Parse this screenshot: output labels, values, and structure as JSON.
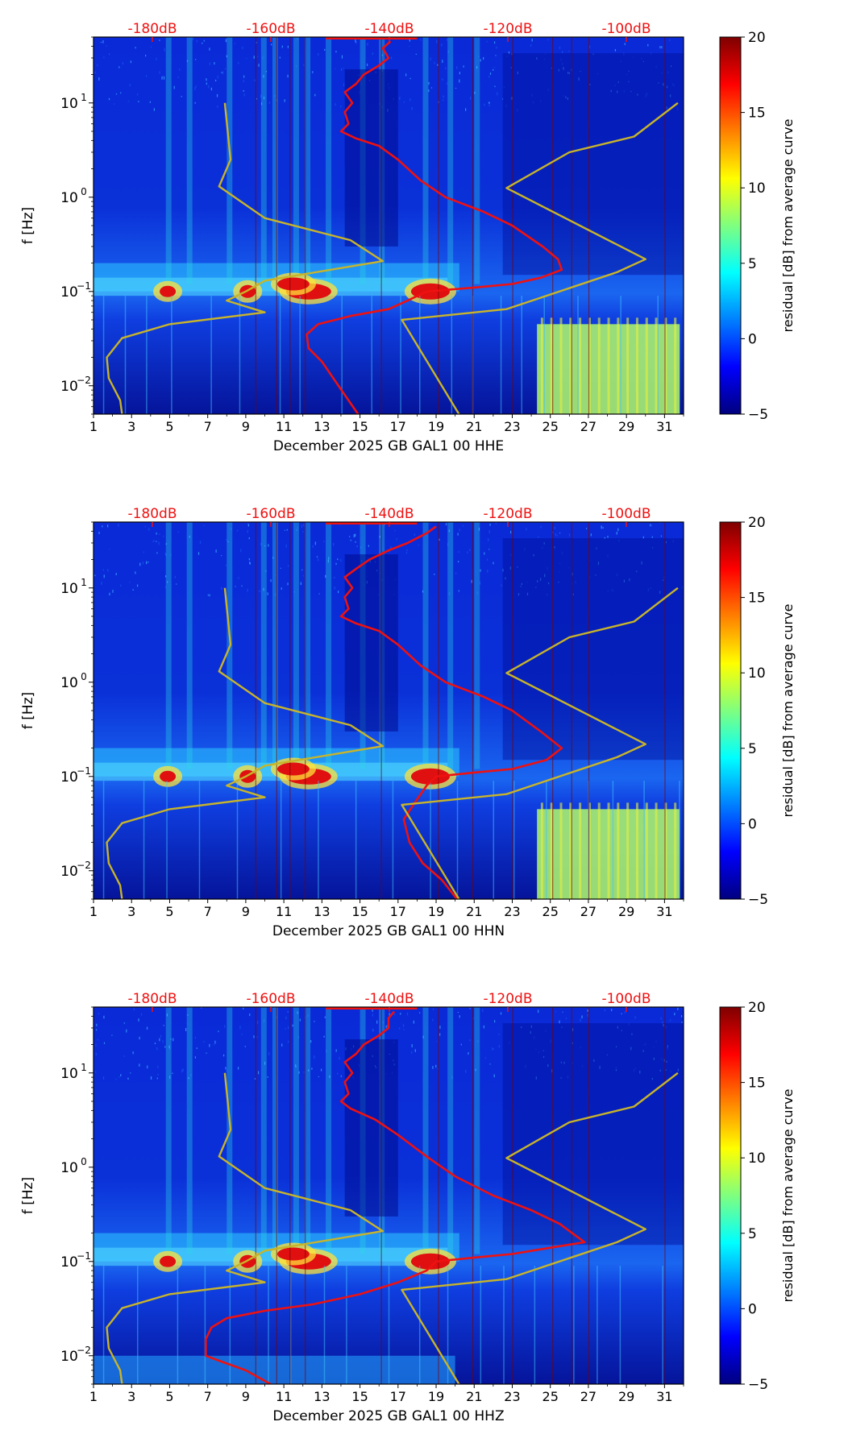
{
  "chart_data": [
    {
      "type": "heatmap",
      "xlabel": "December 2025 GB GAL1 00 HHE",
      "ylabel": "f [Hz]",
      "x_ticks": [
        "1",
        "3",
        "5",
        "7",
        "9",
        "11",
        "13",
        "15",
        "17",
        "19",
        "21",
        "23",
        "25",
        "27",
        "29",
        "31"
      ],
      "xlim": [
        1,
        32
      ],
      "y_scale": "log",
      "ylim": [
        0.005,
        50
      ],
      "y_ticks": [
        {
          "value": 0.01,
          "label": "10",
          "exp": "−2"
        },
        {
          "value": 0.1,
          "label": "10",
          "exp": "−1"
        },
        {
          "value": 1,
          "label": "10",
          "exp": "0"
        },
        {
          "value": 10,
          "label": "10",
          "exp": "1"
        }
      ],
      "db_scale_labels": [
        "-180dB",
        "-160dB",
        "-140dB",
        "-120dB",
        "-100dB"
      ],
      "colorbar": {
        "label": "residual [dB] from average curve",
        "ticks": [
          "20",
          "15",
          "10",
          "5",
          "0",
          "−5"
        ],
        "range": [
          -5,
          20
        ]
      },
      "series": [
        {
          "name": "median PSD (red)",
          "color": "#ee1111",
          "points": [
            [
              14.9,
              0.005
            ],
            [
              14.2,
              0.008
            ],
            [
              13.6,
              0.012
            ],
            [
              13.0,
              0.018
            ],
            [
              12.3,
              0.025
            ],
            [
              12.2,
              0.035
            ],
            [
              12.8,
              0.045
            ],
            [
              14.5,
              0.055
            ],
            [
              16.5,
              0.065
            ],
            [
              17.5,
              0.08
            ],
            [
              18.5,
              0.1
            ],
            [
              21,
              0.11
            ],
            [
              23,
              0.12
            ],
            [
              24.5,
              0.14
            ],
            [
              25.6,
              0.17
            ],
            [
              25.4,
              0.22
            ],
            [
              24.6,
              0.3
            ],
            [
              23,
              0.5
            ],
            [
              21.5,
              0.7
            ],
            [
              19.5,
              1.0
            ],
            [
              18.2,
              1.5
            ],
            [
              17.0,
              2.5
            ],
            [
              16.0,
              3.5
            ],
            [
              14.8,
              4.2
            ],
            [
              14.0,
              5
            ],
            [
              14.4,
              6
            ],
            [
              14.2,
              8
            ],
            [
              14.6,
              10
            ],
            [
              14.2,
              13
            ],
            [
              14.8,
              16
            ],
            [
              15.2,
              20
            ],
            [
              16,
              25
            ],
            [
              16.5,
              30
            ],
            [
              16.2,
              38
            ],
            [
              16.6,
              45
            ]
          ]
        },
        {
          "name": "low noise model (olive)",
          "color": "#c8b42a",
          "points": [
            [
              2.5,
              0.005
            ],
            [
              2.4,
              0.007
            ],
            [
              1.8,
              0.012
            ],
            [
              1.7,
              0.02
            ],
            [
              2.5,
              0.032
            ],
            [
              5,
              0.045
            ],
            [
              10,
              0.06
            ],
            [
              8,
              0.08
            ],
            [
              9,
              0.1
            ],
            [
              10,
              0.13
            ],
            [
              16.2,
              0.21
            ],
            [
              14.5,
              0.35
            ],
            [
              10,
              0.6
            ],
            [
              7.6,
              1.3
            ],
            [
              8.2,
              2.5
            ],
            [
              7.9,
              10
            ]
          ]
        },
        {
          "name": "high noise model (olive)",
          "color": "#c8b42a",
          "points": [
            [
              20.2,
              0.005
            ],
            [
              17.2,
              0.05
            ],
            [
              22.7,
              0.065
            ],
            [
              28.5,
              0.16
            ],
            [
              30.0,
              0.22
            ],
            [
              22.7,
              1.25
            ],
            [
              26,
              3
            ],
            [
              29.4,
              4.4
            ],
            [
              31.7,
              10
            ]
          ]
        }
      ]
    },
    {
      "type": "heatmap",
      "xlabel": "December 2025 GB GAL1 00 HHN",
      "ylabel": "f [Hz]",
      "x_ticks": [
        "1",
        "3",
        "5",
        "7",
        "9",
        "11",
        "13",
        "15",
        "17",
        "19",
        "21",
        "23",
        "25",
        "27",
        "29",
        "31"
      ],
      "xlim": [
        1,
        32
      ],
      "y_scale": "log",
      "ylim": [
        0.005,
        50
      ],
      "y_ticks": [
        {
          "value": 0.01,
          "label": "10",
          "exp": "−2"
        },
        {
          "value": 0.1,
          "label": "10",
          "exp": "−1"
        },
        {
          "value": 1,
          "label": "10",
          "exp": "0"
        },
        {
          "value": 10,
          "label": "10",
          "exp": "1"
        }
      ],
      "db_scale_labels": [
        "-180dB",
        "-160dB",
        "-140dB",
        "-120dB",
        "-100dB"
      ],
      "colorbar": {
        "label": "residual [dB] from average curve",
        "ticks": [
          "20",
          "15",
          "10",
          "5",
          "0",
          "−5"
        ],
        "range": [
          -5,
          20
        ]
      },
      "series": [
        {
          "name": "median PSD (red)",
          "color": "#ee1111",
          "points": [
            [
              20.1,
              0.005
            ],
            [
              19.3,
              0.008
            ],
            [
              18.3,
              0.012
            ],
            [
              17.6,
              0.02
            ],
            [
              17.3,
              0.035
            ],
            [
              17.8,
              0.05
            ],
            [
              18.5,
              0.08
            ],
            [
              19,
              0.1
            ],
            [
              21,
              0.11
            ],
            [
              23,
              0.12
            ],
            [
              24.8,
              0.15
            ],
            [
              25.6,
              0.2
            ],
            [
              24.5,
              0.3
            ],
            [
              23,
              0.5
            ],
            [
              21.5,
              0.7
            ],
            [
              19.5,
              1.0
            ],
            [
              18.2,
              1.5
            ],
            [
              17,
              2.5
            ],
            [
              16,
              3.5
            ],
            [
              14.8,
              4.2
            ],
            [
              14,
              5
            ],
            [
              14.4,
              6
            ],
            [
              14.2,
              8
            ],
            [
              14.6,
              10
            ],
            [
              14.2,
              13
            ],
            [
              14.8,
              16
            ],
            [
              15.5,
              20
            ],
            [
              16.5,
              25
            ],
            [
              17.5,
              30
            ],
            [
              18.5,
              38
            ],
            [
              19,
              45
            ]
          ]
        },
        {
          "name": "low noise model (olive)",
          "color": "#c8b42a",
          "points": [
            [
              2.5,
              0.005
            ],
            [
              2.4,
              0.007
            ],
            [
              1.8,
              0.012
            ],
            [
              1.7,
              0.02
            ],
            [
              2.5,
              0.032
            ],
            [
              5,
              0.045
            ],
            [
              10,
              0.06
            ],
            [
              8,
              0.08
            ],
            [
              9,
              0.1
            ],
            [
              10,
              0.13
            ],
            [
              16.2,
              0.21
            ],
            [
              14.5,
              0.35
            ],
            [
              10,
              0.6
            ],
            [
              7.6,
              1.3
            ],
            [
              8.2,
              2.5
            ],
            [
              7.9,
              10
            ]
          ]
        },
        {
          "name": "high noise model (olive)",
          "color": "#c8b42a",
          "points": [
            [
              20.2,
              0.005
            ],
            [
              17.2,
              0.05
            ],
            [
              22.7,
              0.065
            ],
            [
              28.5,
              0.16
            ],
            [
              30.0,
              0.22
            ],
            [
              22.7,
              1.25
            ],
            [
              26,
              3
            ],
            [
              29.4,
              4.4
            ],
            [
              31.7,
              10
            ]
          ]
        }
      ]
    },
    {
      "type": "heatmap",
      "xlabel": "December 2025 GB GAL1 00 HHZ",
      "ylabel": "f [Hz]",
      "x_ticks": [
        "1",
        "3",
        "5",
        "7",
        "9",
        "11",
        "13",
        "15",
        "17",
        "19",
        "21",
        "23",
        "25",
        "27",
        "29",
        "31"
      ],
      "xlim": [
        1,
        32
      ],
      "y_scale": "log",
      "ylim": [
        0.005,
        50
      ],
      "y_ticks": [
        {
          "value": 0.01,
          "label": "10",
          "exp": "−2"
        },
        {
          "value": 0.1,
          "label": "10",
          "exp": "−1"
        },
        {
          "value": 1,
          "label": "10",
          "exp": "0"
        },
        {
          "value": 10,
          "label": "10",
          "exp": "1"
        }
      ],
      "db_scale_labels": [
        "-180dB",
        "-160dB",
        "-140dB",
        "-120dB",
        "-100dB"
      ],
      "colorbar": {
        "label": "residual [dB] from average curve",
        "ticks": [
          "20",
          "15",
          "10",
          "5",
          "0",
          "−5"
        ],
        "range": [
          -5,
          20
        ]
      },
      "series": [
        {
          "name": "median PSD (red)",
          "color": "#ee1111",
          "points": [
            [
              10.3,
              0.005
            ],
            [
              9,
              0.007
            ],
            [
              7.5,
              0.009
            ],
            [
              6.9,
              0.01
            ],
            [
              6.9,
              0.015
            ],
            [
              7.2,
              0.02
            ],
            [
              8,
              0.025
            ],
            [
              10,
              0.03
            ],
            [
              12.5,
              0.035
            ],
            [
              15,
              0.045
            ],
            [
              17,
              0.06
            ],
            [
              18.5,
              0.08
            ],
            [
              19,
              0.1
            ],
            [
              21,
              0.11
            ],
            [
              23,
              0.12
            ],
            [
              25,
              0.14
            ],
            [
              26.8,
              0.16
            ],
            [
              25.5,
              0.25
            ],
            [
              24,
              0.35
            ],
            [
              22,
              0.5
            ],
            [
              20,
              0.8
            ],
            [
              18.5,
              1.3
            ],
            [
              17,
              2.2
            ],
            [
              15.8,
              3.2
            ],
            [
              14.5,
              4.2
            ],
            [
              14,
              5
            ],
            [
              14.4,
              6
            ],
            [
              14.2,
              8
            ],
            [
              14.6,
              10
            ],
            [
              14.2,
              13
            ],
            [
              14.8,
              16
            ],
            [
              15.2,
              20
            ],
            [
              16,
              25
            ],
            [
              16.5,
              30
            ],
            [
              16.5,
              38
            ],
            [
              16.8,
              45
            ]
          ]
        },
        {
          "name": "low noise model (olive)",
          "color": "#c8b42a",
          "points": [
            [
              2.5,
              0.005
            ],
            [
              2.4,
              0.007
            ],
            [
              1.8,
              0.012
            ],
            [
              1.7,
              0.02
            ],
            [
              2.5,
              0.032
            ],
            [
              5,
              0.045
            ],
            [
              10,
              0.06
            ],
            [
              8,
              0.08
            ],
            [
              9,
              0.1
            ],
            [
              10,
              0.13
            ],
            [
              16.2,
              0.21
            ],
            [
              14.5,
              0.35
            ],
            [
              10,
              0.6
            ],
            [
              7.6,
              1.3
            ],
            [
              8.2,
              2.5
            ],
            [
              7.9,
              10
            ]
          ]
        },
        {
          "name": "high noise model (olive)",
          "color": "#c8b42a",
          "points": [
            [
              20.2,
              0.005
            ],
            [
              17.2,
              0.05
            ],
            [
              22.7,
              0.065
            ],
            [
              28.5,
              0.16
            ],
            [
              30.0,
              0.22
            ],
            [
              22.7,
              1.25
            ],
            [
              26,
              3
            ],
            [
              29.4,
              4.4
            ],
            [
              31.7,
              10
            ]
          ]
        }
      ]
    }
  ]
}
